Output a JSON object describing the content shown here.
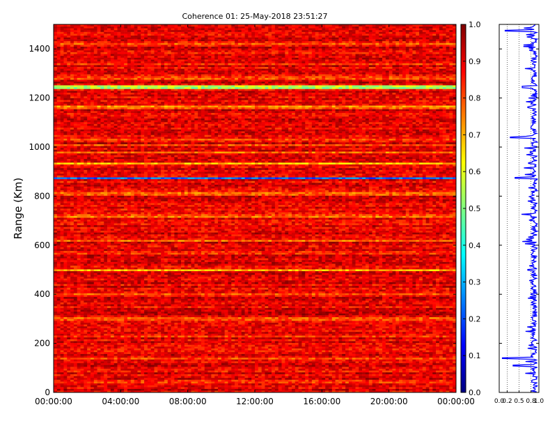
{
  "chart_data": [
    {
      "type": "heatmap",
      "title": "Coherence 01: 25-May-2018 23:51:27",
      "xlabel": "",
      "ylabel": "Range (Km)",
      "x_tick_labels": [
        "00:00:00",
        "04:00:00",
        "08:00:00",
        "12:00:00",
        "16:00:00",
        "20:00:00",
        "00:00:00"
      ],
      "y_ticks": [
        0,
        200,
        400,
        600,
        800,
        1000,
        1200,
        1400
      ],
      "ylim": [
        0,
        1500
      ],
      "value_range": [
        0.0,
        1.0
      ],
      "colormap": "jet",
      "typical_value": 0.9,
      "low_coherence_bands": [
        {
          "range_km": 875,
          "value": 0.25
        },
        {
          "range_km": 1245,
          "value": 0.55
        },
        {
          "range_km": 935,
          "value": 0.7
        },
        {
          "range_km": 500,
          "value": 0.72
        },
        {
          "range_km": 1163,
          "value": 0.75
        },
        {
          "range_km": 980,
          "value": 0.78
        },
        {
          "range_km": 140,
          "value": 0.8
        },
        {
          "range_km": 1030,
          "value": 0.8
        },
        {
          "range_km": 400,
          "value": 0.78
        },
        {
          "range_km": 1008,
          "value": 0.8
        },
        {
          "range_km": 620,
          "value": 0.8
        },
        {
          "range_km": 810,
          "value": 0.8
        },
        {
          "range_km": 1282,
          "value": 0.8
        },
        {
          "range_km": 1340,
          "value": 0.8
        },
        {
          "range_km": 720,
          "value": 0.78
        },
        {
          "range_km": 230,
          "value": 0.8
        },
        {
          "range_km": 300,
          "value": 0.8
        },
        {
          "range_km": 45,
          "value": 0.82
        },
        {
          "range_km": 1420,
          "value": 0.82
        },
        {
          "range_km": 570,
          "value": 0.82
        }
      ]
    },
    {
      "type": "line",
      "title": "",
      "xlabel": "",
      "ylabel": "",
      "x_tick_labels": [
        "0.0",
        "0.2",
        "0.5",
        "0.8",
        "1.0"
      ],
      "x_ticks": [
        0.0,
        0.2,
        0.5,
        0.8,
        1.0
      ],
      "xlim": [
        0.0,
        1.0
      ],
      "ylim": [
        0,
        1500
      ],
      "grid": "vertical dotted",
      "color": "#0000ff",
      "profile_points": [
        {
          "range_km": 0,
          "value": 0.93
        },
        {
          "range_km": 20,
          "value": 0.86
        },
        {
          "range_km": 45,
          "value": 0.82
        },
        {
          "range_km": 85,
          "value": 0.88
        },
        {
          "range_km": 110,
          "value": 0.35
        },
        {
          "range_km": 140,
          "value": 0.08
        },
        {
          "range_km": 200,
          "value": 0.82
        },
        {
          "range_km": 230,
          "value": 0.86
        },
        {
          "range_km": 300,
          "value": 0.84
        },
        {
          "range_km": 400,
          "value": 0.8
        },
        {
          "range_km": 470,
          "value": 0.86
        },
        {
          "range_km": 500,
          "value": 0.72
        },
        {
          "range_km": 570,
          "value": 0.85
        },
        {
          "range_km": 620,
          "value": 0.82
        },
        {
          "range_km": 720,
          "value": 0.8
        },
        {
          "range_km": 810,
          "value": 0.83
        },
        {
          "range_km": 840,
          "value": 0.9
        },
        {
          "range_km": 875,
          "value": 0.4
        },
        {
          "range_km": 935,
          "value": 0.74
        },
        {
          "range_km": 980,
          "value": 0.78
        },
        {
          "range_km": 1008,
          "value": 0.83
        },
        {
          "range_km": 1040,
          "value": 0.28
        },
        {
          "range_km": 1080,
          "value": 0.8
        },
        {
          "range_km": 1163,
          "value": 0.72
        },
        {
          "range_km": 1245,
          "value": 0.58
        },
        {
          "range_km": 1282,
          "value": 0.83
        },
        {
          "range_km": 1340,
          "value": 0.84
        },
        {
          "range_km": 1420,
          "value": 0.86
        },
        {
          "range_km": 1475,
          "value": 0.15
        },
        {
          "range_km": 1500,
          "value": 0.9
        }
      ]
    }
  ],
  "colorbar": {
    "tick_labels": [
      "0.0",
      "0.1",
      "0.2",
      "0.3",
      "0.4",
      "0.5",
      "0.6",
      "0.7",
      "0.8",
      "0.9",
      "1.0"
    ]
  }
}
